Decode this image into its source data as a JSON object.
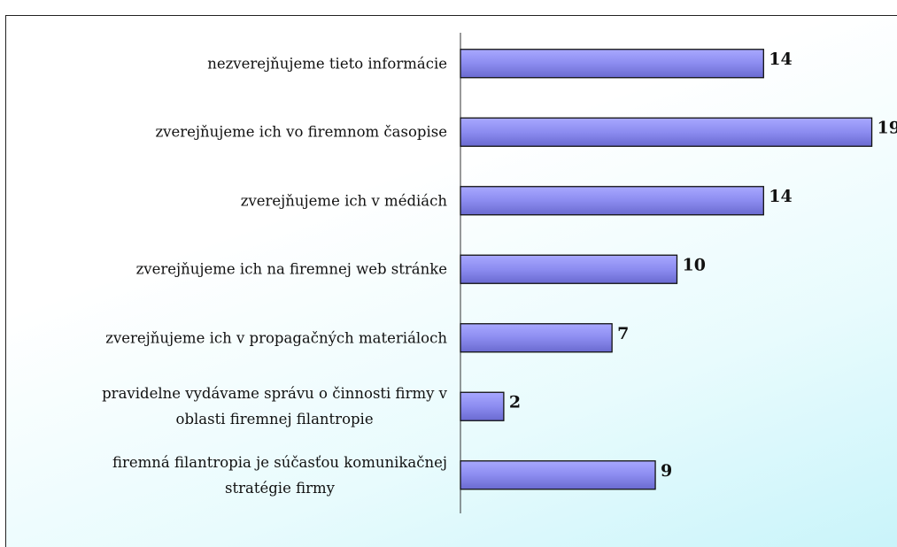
{
  "chart_data": {
    "type": "barh",
    "categories": [
      "nezverejňujeme tieto informácie",
      "zverejňujeme ich vo firemnom časopise",
      "zverejňujeme ich v médiách",
      "zverejňujeme ich na firemnej web stránke",
      "zverejňujeme ich v propagačných materiáloch",
      "pravidelne vydávame správu o činnosti firmy v\noblasti firemnej filantropie",
      "firemná filantropia je súčasťou komunikačnej\nstratégie firmy"
    ],
    "values": [
      14,
      19,
      14,
      10,
      7,
      2,
      9
    ],
    "color": "#8c8cf0",
    "xlim": [
      0,
      20
    ]
  }
}
